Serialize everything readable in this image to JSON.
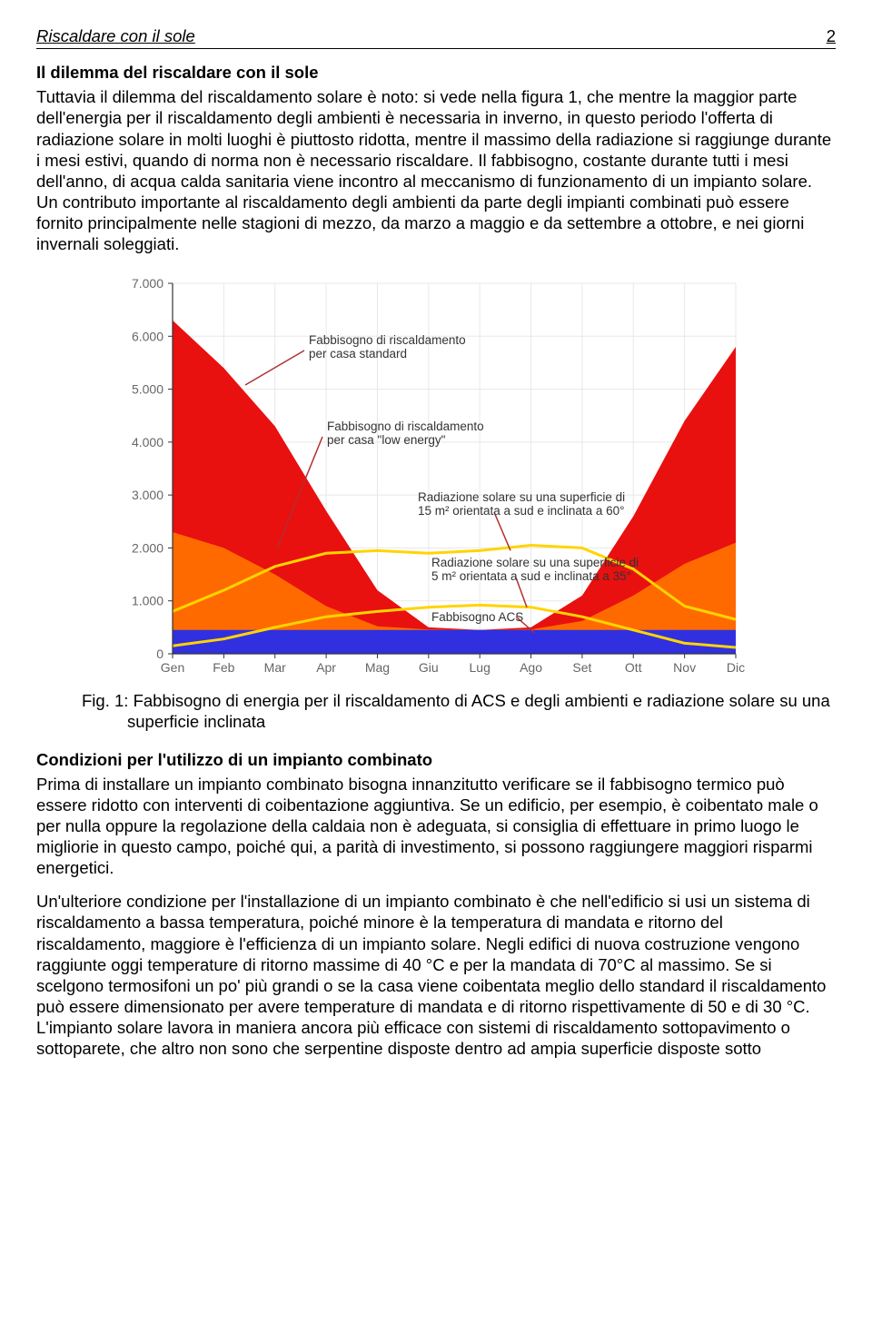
{
  "header": {
    "title": "Riscaldare con il sole",
    "page_number": "2"
  },
  "section1": {
    "title": "Il dilemma del riscaldare con il sole",
    "body": "Tuttavia il dilemma del riscaldamento solare è noto: si vede nella figura 1, che mentre la maggior parte dell'energia per il riscaldamento degli ambienti è necessaria in inverno, in questo periodo l'offerta di radiazione solare in molti luoghi è piuttosto ridotta, mentre il massimo della radiazione si raggiunge durante i mesi estivi, quando di norma non è necessario riscaldare. Il fabbisogno, costante durante tutti i mesi dell'anno, di acqua calda sanitaria viene incontro al meccanismo di funzionamento di un impianto solare. Un contributo importante al riscaldamento degli ambienti da parte degli impianti combinati può essere fornito principalmente nelle stagioni di mezzo, da marzo a maggio e da settembre a ottobre, e nei giorni invernali soleggiati."
  },
  "chart": {
    "type": "area",
    "background_color": "#ffffff",
    "grid_color": "#e8e8e8",
    "axis_color": "#333333",
    "ylim": [
      0,
      7000
    ],
    "ytick_step": 1000,
    "ytick_labels": [
      "0",
      "1.000",
      "2.000",
      "3.000",
      "4.000",
      "5.000",
      "6.000",
      "7.000"
    ],
    "x_labels": [
      "Gen",
      "Feb",
      "Mar",
      "Apr",
      "Mag",
      "Giu",
      "Lug",
      "Ago",
      "Set",
      "Ott",
      "Nov",
      "Dic"
    ],
    "series": {
      "casa_standard": {
        "color": "#e91010",
        "values": [
          6300,
          5400,
          4300,
          2700,
          1200,
          500,
          450,
          500,
          1100,
          2600,
          4400,
          5800
        ]
      },
      "casa_low_energy": {
        "color": "#ff6a00",
        "values": [
          2300,
          2000,
          1500,
          900,
          520,
          460,
          450,
          460,
          620,
          1100,
          1700,
          2100
        ]
      },
      "acs": {
        "color": "#3030e0",
        "values": [
          450,
          450,
          450,
          450,
          450,
          450,
          450,
          450,
          450,
          450,
          450,
          450
        ]
      },
      "rad_15m2_60": {
        "color": "#ffd400",
        "line_width": 3,
        "values": [
          800,
          1200,
          1650,
          1900,
          1950,
          1900,
          1950,
          2050,
          2000,
          1600,
          900,
          650
        ]
      },
      "rad_5m2_35": {
        "color": "#ffd400",
        "line_width": 3,
        "values": [
          150,
          280,
          500,
          700,
          800,
          880,
          920,
          880,
          700,
          450,
          200,
          120
        ]
      }
    },
    "label_fontsize": 14,
    "annotations": {
      "standard": "Fabbisogno di riscaldamento\nper casa standard",
      "low_energy": "Fabbisogno di riscaldamento\nper casa \"low energy\"",
      "rad60": "Radiazione solare su una superficie di\n15 m² orientata a sud e inclinata a 60°",
      "rad35": "Radiazione solare su una superficie di\n5 m² orientata a sud e inclinata a 35°",
      "acs": "Fabbisogno ACS"
    }
  },
  "caption": {
    "prefix": "Fig. 1:",
    "text": "Fabbisogno di energia per il riscaldamento di ACS e degli ambienti e radiazione solare su una superficie inclinata"
  },
  "section2": {
    "title": "Condizioni per l'utilizzo di un impianto combinato",
    "p1": "Prima di installare un impianto combinato bisogna innanzitutto verificare se il fabbisogno termico può essere ridotto con interventi di coibentazione aggiuntiva. Se un edificio, per esempio, è coibentato male o per nulla oppure la regolazione della caldaia non è adeguata, si consiglia di effettuare in primo luogo le migliorie in questo campo, poiché qui, a parità di investimento, si possono raggiungere maggiori risparmi energetici.",
    "p2": "Un'ulteriore condizione per l'installazione di un impianto combinato è che nell'edificio si usi un sistema di riscaldamento a bassa temperatura, poiché minore è la temperatura di mandata e ritorno del riscaldamento, maggiore è l'efficienza di un impianto solare. Negli edifici di nuova costruzione vengono raggiunte oggi temperature di ritorno massime di 40 °C e per la mandata di 70°C al massimo. Se si scelgono termosifoni un po' più grandi o se la casa viene coibentata meglio dello standard il riscaldamento può essere dimensionato per avere temperature di mandata e di ritorno rispettivamente di 50 e di 30 °C. L'impianto solare lavora in maniera ancora più efficace con sistemi di riscaldamento sottopavimento o sottoparete, che altro non sono che serpentine disposte dentro ad ampia superficie disposte sotto"
  }
}
